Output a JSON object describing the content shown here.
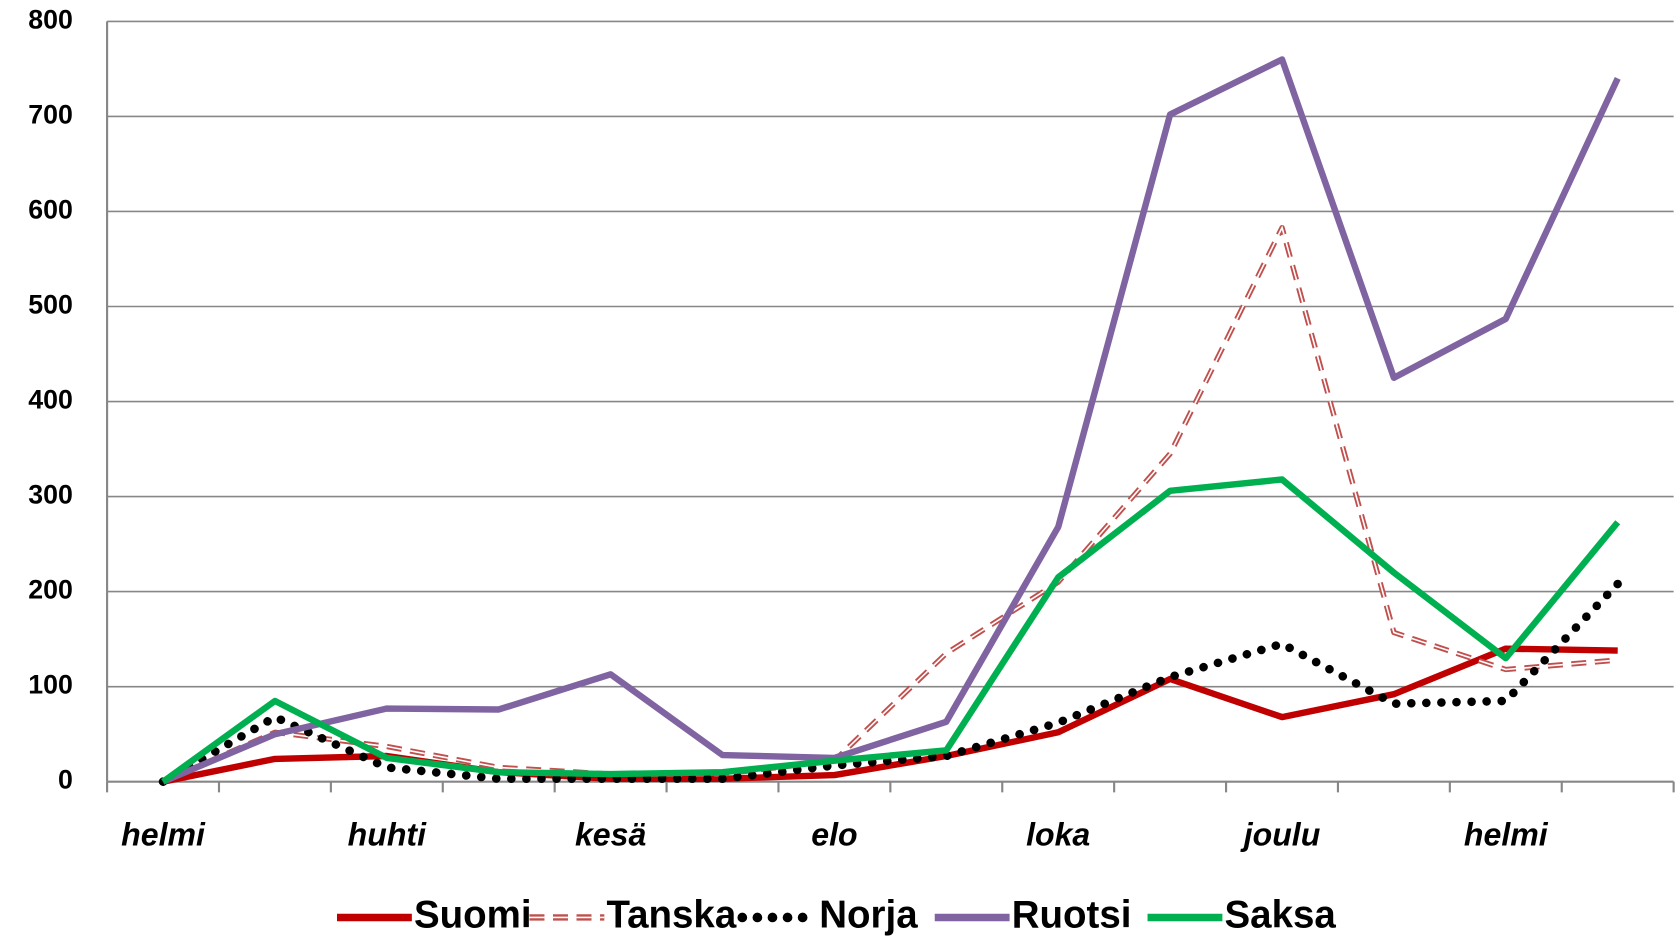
{
  "chart_data": {
    "type": "line",
    "categories": [
      "helmi",
      null,
      "huhti",
      null,
      "kesä",
      null,
      "elo",
      null,
      "loka",
      null,
      "joulu",
      null,
      "helmi",
      null
    ],
    "series": [
      {
        "name": "Suomi",
        "color": "#c00000",
        "dash": "solid",
        "values": [
          0,
          24,
          27,
          10,
          3,
          3,
          7,
          27,
          52,
          108,
          68,
          92,
          140,
          138
        ]
      },
      {
        "name": "Tanska",
        "color": "#c0504d",
        "dash": "dashed",
        "values": [
          0,
          52,
          37,
          15,
          8,
          8,
          22,
          135,
          210,
          345,
          583,
          157,
          118,
          128
        ]
      },
      {
        "name": "Norja",
        "color": "#000000",
        "dash": "dotted",
        "values": [
          0,
          68,
          15,
          3,
          3,
          3,
          17,
          27,
          62,
          110,
          145,
          82,
          85,
          208
        ]
      },
      {
        "name": "Ruotsi",
        "color": "#8064a2",
        "dash": "solid",
        "values": [
          0,
          50,
          77,
          76,
          113,
          28,
          25,
          63,
          268,
          702,
          760,
          425,
          487,
          740
        ]
      },
      {
        "name": "Saksa",
        "color": "#00b050",
        "dash": "solid",
        "values": [
          0,
          85,
          25,
          10,
          8,
          10,
          22,
          33,
          215,
          306,
          318,
          220,
          130,
          273
        ]
      }
    ],
    "ylim": [
      0,
      800
    ],
    "yticks": [
      0,
      100,
      200,
      300,
      400,
      500,
      600,
      700,
      800
    ],
    "grid": true,
    "legend": "bottom"
  }
}
